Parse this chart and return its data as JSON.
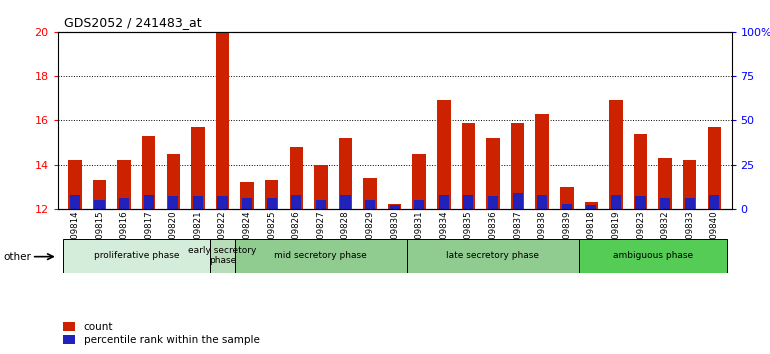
{
  "title": "GDS2052 / 241483_at",
  "samples": [
    "GSM109814",
    "GSM109815",
    "GSM109816",
    "GSM109817",
    "GSM109820",
    "GSM109821",
    "GSM109822",
    "GSM109824",
    "GSM109825",
    "GSM109826",
    "GSM109827",
    "GSM109828",
    "GSM109829",
    "GSM109830",
    "GSM109831",
    "GSM109834",
    "GSM109835",
    "GSM109836",
    "GSM109837",
    "GSM109838",
    "GSM109839",
    "GSM109818",
    "GSM109819",
    "GSM109823",
    "GSM109832",
    "GSM109833",
    "GSM109840"
  ],
  "count_values": [
    14.2,
    13.3,
    14.2,
    15.3,
    14.5,
    15.7,
    20.0,
    13.2,
    13.3,
    14.8,
    14.0,
    15.2,
    13.4,
    12.2,
    14.5,
    16.9,
    15.9,
    15.2,
    15.9,
    16.3,
    13.0,
    12.3,
    16.9,
    15.4,
    14.3,
    14.2,
    15.7
  ],
  "percentile_values": [
    8,
    5,
    6,
    8,
    7,
    7,
    7,
    6,
    6,
    8,
    5,
    8,
    5,
    2,
    5,
    8,
    8,
    7,
    9,
    8,
    3,
    2,
    8,
    7,
    6,
    6,
    8
  ],
  "phases": [
    {
      "label": "proliferative phase",
      "start": 0,
      "end": 6,
      "color": "#d4edda"
    },
    {
      "label": "early secretory\nphase",
      "start": 6,
      "end": 7,
      "color": "#b8ddb8"
    },
    {
      "label": "mid secretory phase",
      "start": 7,
      "end": 14,
      "color": "#90cc90"
    },
    {
      "label": "late secretory phase",
      "start": 14,
      "end": 21,
      "color": "#90cc90"
    },
    {
      "label": "ambiguous phase",
      "start": 21,
      "end": 27,
      "color": "#55cc55"
    }
  ],
  "ylim_left": [
    12,
    20
  ],
  "ylim_right": [
    0,
    100
  ],
  "yticks_left": [
    12,
    14,
    16,
    18,
    20
  ],
  "yticks_right": [
    0,
    25,
    50,
    75,
    100
  ],
  "ytick_labels_right": [
    "0",
    "25",
    "50",
    "75",
    "100%"
  ],
  "bar_width": 0.55,
  "count_color": "#cc2200",
  "percentile_color": "#2222bb",
  "legend_count": "count",
  "legend_pct": "percentile rank within the sample"
}
